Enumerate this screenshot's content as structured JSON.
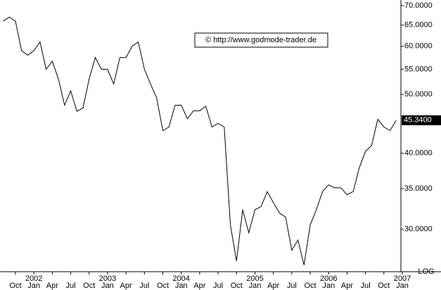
{
  "chart_data": {
    "type": "line",
    "annotations": {
      "watermark": "© http://www.godmode-trader.de",
      "scale_label": "LOG",
      "last_value_label": "45.3400"
    },
    "log_scale": true,
    "x": [
      "2001-08",
      "2001-09",
      "2001-10",
      "2001-11",
      "2001-12",
      "2002-01",
      "2002-02",
      "2002-03",
      "2002-04",
      "2002-05",
      "2002-06",
      "2002-07",
      "2002-08",
      "2002-09",
      "2002-10",
      "2002-11",
      "2002-12",
      "2003-01",
      "2003-02",
      "2003-03",
      "2003-04",
      "2003-05",
      "2003-06",
      "2003-07",
      "2003-08",
      "2003-09",
      "2003-10",
      "2003-11",
      "2003-12",
      "2004-01",
      "2004-02",
      "2004-03",
      "2004-04",
      "2004-05",
      "2004-06",
      "2004-07",
      "2004-08",
      "2004-09",
      "2004-10",
      "2004-11",
      "2004-12",
      "2005-01",
      "2005-02",
      "2005-03",
      "2005-04",
      "2005-05",
      "2005-06",
      "2005-07",
      "2005-08",
      "2005-09",
      "2005-10",
      "2005-11",
      "2005-12",
      "2006-01",
      "2006-02",
      "2006-03",
      "2006-04",
      "2006-05",
      "2006-06",
      "2006-07",
      "2006-08",
      "2006-09",
      "2006-10",
      "2006-11",
      "2006-12"
    ],
    "series": [
      {
        "color": "#000000",
        "values": [
          66.0,
          67.0,
          66.0,
          59.0,
          58.0,
          59.0,
          61.0,
          55.0,
          56.7,
          53.0,
          48.0,
          50.7,
          46.9,
          47.5,
          53.0,
          57.5,
          55.0,
          55.0,
          52.0,
          57.5,
          57.5,
          60.0,
          61.0,
          55.0,
          52.0,
          49.3,
          43.6,
          44.2,
          48.0,
          48.0,
          45.6,
          47.0,
          47.0,
          47.8,
          44.2,
          44.8,
          44.2,
          30.5,
          26.6,
          32.3,
          29.6,
          32.3,
          32.7,
          34.6,
          33.2,
          31.9,
          31.4,
          27.7,
          28.8,
          26.2,
          30.5,
          32.3,
          34.6,
          35.5,
          35.1,
          35.1,
          34.2,
          34.6,
          37.9,
          40.3,
          41.2,
          45.5,
          44.2,
          43.6,
          45.34
        ]
      }
    ],
    "xlim": [
      "2001-08",
      "2007-01"
    ],
    "ylim": [
      25.75,
      71.5
    ],
    "yticks": [
      {
        "value": 30,
        "label": "30.0000"
      },
      {
        "value": 35,
        "label": "35.0000"
      },
      {
        "value": 40,
        "label": "40.0000"
      },
      {
        "value": 50,
        "label": "50.0000"
      },
      {
        "value": 55,
        "label": "55.0000"
      },
      {
        "value": 60,
        "label": "60.0000"
      },
      {
        "value": 65,
        "label": "65.0000"
      },
      {
        "value": 70,
        "label": "70.0000"
      }
    ],
    "xticks": [
      {
        "value": "2001-10",
        "label": "Oct"
      },
      {
        "value": "2002-01",
        "label": "Jan"
      },
      {
        "value": "2002-04",
        "label": "Apr"
      },
      {
        "value": "2002-07",
        "label": "Jul"
      },
      {
        "value": "2002-10",
        "label": "Oct"
      },
      {
        "value": "2003-01",
        "label": "Jan"
      },
      {
        "value": "2003-04",
        "label": "Apr"
      },
      {
        "value": "2003-07",
        "label": "Jul"
      },
      {
        "value": "2003-10",
        "label": "Oct"
      },
      {
        "value": "2004-01",
        "label": "Jan"
      },
      {
        "value": "2004-04",
        "label": "Apr"
      },
      {
        "value": "2004-07",
        "label": "Jul"
      },
      {
        "value": "2004-10",
        "label": "Oct"
      },
      {
        "value": "2005-01",
        "label": "Jan"
      },
      {
        "value": "2005-04",
        "label": "Apr"
      },
      {
        "value": "2005-07",
        "label": "Jul"
      },
      {
        "value": "2005-10",
        "label": "Oct"
      },
      {
        "value": "2006-01",
        "label": "Jan"
      },
      {
        "value": "2006-04",
        "label": "Apr"
      },
      {
        "value": "2006-07",
        "label": "Jul"
      },
      {
        "value": "2006-10",
        "label": "Oct"
      },
      {
        "value": "2007-01",
        "label": "Jan"
      }
    ],
    "year_ticks": [
      {
        "value": "2002-01",
        "label": "2002"
      },
      {
        "value": "2003-01",
        "label": "2003"
      },
      {
        "value": "2004-01",
        "label": "2004"
      },
      {
        "value": "2005-01",
        "label": "2005"
      },
      {
        "value": "2006-01",
        "label": "2006"
      },
      {
        "value": "2007-01",
        "label": "2007"
      }
    ]
  }
}
